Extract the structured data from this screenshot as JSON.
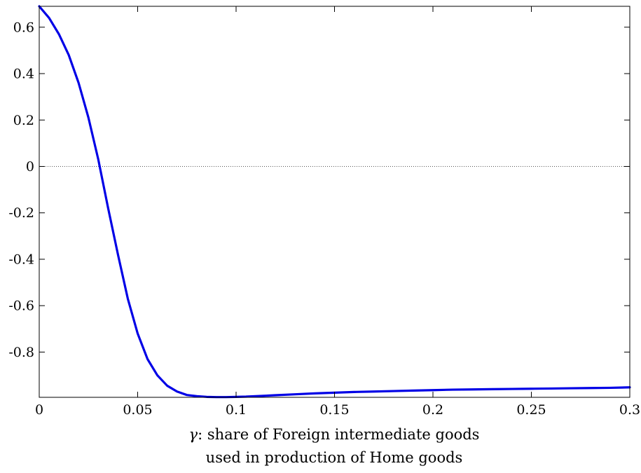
{
  "chart_data": {
    "type": "line",
    "xlabel_line1_symbol": "γ",
    "xlabel_line1_text": ": share of Foreign intermediate goods",
    "xlabel_line2": "used in production of Home goods",
    "ylabel": "",
    "xlim": [
      0,
      0.3
    ],
    "ylim": [
      -0.995,
      0.69
    ],
    "x_ticks": [
      0,
      0.05,
      0.1,
      0.15,
      0.2,
      0.25,
      0.3
    ],
    "x_tick_labels": [
      "0",
      "0.05",
      "0.1",
      "0.15",
      "0.2",
      "0.25",
      "0.3"
    ],
    "y_ticks": [
      0.6,
      0.4,
      0.2,
      0,
      -0.2,
      -0.4,
      -0.6,
      -0.8
    ],
    "y_tick_labels": [
      "0.6",
      "0.4",
      "0.2",
      "0",
      "-0.2",
      "-0.4",
      "-0.6",
      "-0.8"
    ],
    "reference_line_y": 0,
    "grid": false,
    "series": [
      {
        "color": "#0000e6",
        "x": [
          0,
          0.005,
          0.01,
          0.015,
          0.02,
          0.025,
          0.03,
          0.035,
          0.04,
          0.045,
          0.05,
          0.055,
          0.06,
          0.065,
          0.07,
          0.075,
          0.08,
          0.085,
          0.09,
          0.095,
          0.1,
          0.105,
          0.11,
          0.12,
          0.13,
          0.14,
          0.15,
          0.16,
          0.17,
          0.18,
          0.19,
          0.2,
          0.21,
          0.22,
          0.23,
          0.24,
          0.25,
          0.26,
          0.27,
          0.28,
          0.29,
          0.3
        ],
        "y": [
          0.69,
          0.64,
          0.57,
          0.48,
          0.36,
          0.21,
          0.03,
          -0.18,
          -0.38,
          -0.57,
          -0.72,
          -0.83,
          -0.9,
          -0.945,
          -0.97,
          -0.985,
          -0.99,
          -0.993,
          -0.994,
          -0.994,
          -0.993,
          -0.992,
          -0.99,
          -0.986,
          -0.982,
          -0.978,
          -0.975,
          -0.972,
          -0.97,
          -0.968,
          -0.966,
          -0.964,
          -0.962,
          -0.961,
          -0.96,
          -0.959,
          -0.958,
          -0.957,
          -0.956,
          -0.955,
          -0.954,
          -0.952
        ]
      }
    ]
  }
}
